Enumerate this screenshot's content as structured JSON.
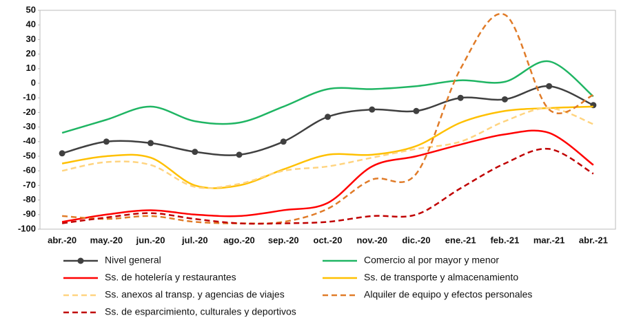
{
  "chart_data": {
    "type": "line",
    "categories": [
      "abr.-20",
      "may.-20",
      "jun.-20",
      "jul.-20",
      "ago.-20",
      "sep.-20",
      "oct.-20",
      "nov.-20",
      "dic.-20",
      "ene.-21",
      "feb.-21",
      "mar.-21",
      "abr.-21"
    ],
    "ylim": [
      -100,
      50
    ],
    "yticks": [
      50,
      40,
      30,
      20,
      10,
      0,
      -10,
      -20,
      -30,
      -40,
      -50,
      -60,
      -70,
      -80,
      -90,
      -100
    ],
    "legend": "bottom",
    "series": [
      {
        "name": "Nivel general",
        "color": "#404040",
        "dashed": false,
        "markers": true,
        "values": [
          -48,
          -40,
          -41,
          -47,
          -49,
          -40,
          -23,
          -18,
          -19,
          -10,
          -11,
          -2,
          -15
        ]
      },
      {
        "name": "Comercio al por mayor y menor",
        "color": "#1fb563",
        "dashed": false,
        "markers": false,
        "values": [
          -34,
          -25,
          -16,
          -26,
          -27,
          -16,
          -4,
          -4,
          -2,
          2,
          1,
          15,
          -9
        ]
      },
      {
        "name": "Ss. de hotelería y restaurantes",
        "color": "#ff0000",
        "dashed": false,
        "markers": false,
        "values": [
          -95,
          -90,
          -87,
          -90,
          -91,
          -87,
          -82,
          -57,
          -50,
          -42,
          -35,
          -34,
          -56
        ]
      },
      {
        "name": "Ss. de transporte y almacenamiento",
        "color": "#ffc000",
        "dashed": false,
        "markers": false,
        "values": [
          -55,
          -50,
          -51,
          -70,
          -70,
          -59,
          -49,
          -49,
          -43,
          -27,
          -19,
          -17,
          -16
        ]
      },
      {
        "name": "Ss. anexos al transp. y agencias de viajes",
        "color": "#ffd480",
        "dashed": true,
        "markers": false,
        "values": [
          -60,
          -54,
          -56,
          -71,
          -69,
          -60,
          -57,
          -51,
          -45,
          -40,
          -26,
          -17,
          -28
        ]
      },
      {
        "name": "Alquiler de equipo y efectos personales",
        "color": "#e07b28",
        "dashed": true,
        "markers": false,
        "values": [
          -91,
          -93,
          -91,
          -95,
          -96,
          -95,
          -86,
          -66,
          -62,
          10,
          47,
          -18,
          -8
        ]
      },
      {
        "name": "Ss. de esparcimiento, culturales y deportivos",
        "color": "#c00000",
        "dashed": true,
        "markers": false,
        "values": [
          -96,
          -92,
          -89,
          -93,
          -96,
          -96,
          -95,
          -91,
          -90,
          -72,
          -55,
          -45,
          -62
        ]
      }
    ]
  }
}
